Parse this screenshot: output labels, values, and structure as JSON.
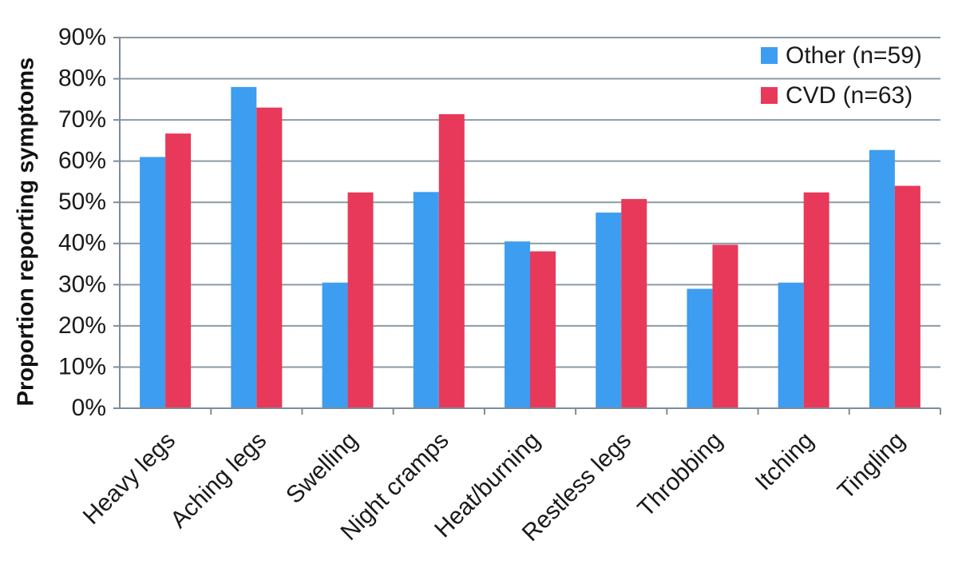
{
  "chart_data": {
    "type": "bar",
    "title": "",
    "xlabel": "",
    "ylabel": "Proportion reporting symptoms",
    "ylim": [
      0,
      90
    ],
    "yticks": [
      "0%",
      "10%",
      "20%",
      "30%",
      "40%",
      "50%",
      "60%",
      "70%",
      "80%",
      "90%"
    ],
    "grid": true,
    "legend_position": "top-right",
    "categories": [
      "Heavy legs",
      "Aching legs",
      "Swelling",
      "Night cramps",
      "Heat/burning",
      "Restless legs",
      "Throbbing",
      "Itching",
      "Tingling"
    ],
    "series": [
      {
        "name": "Other (n=59)",
        "color": "#3d9df0",
        "values": [
          61,
          78,
          30.5,
          52.5,
          40.5,
          47.5,
          29,
          30.5,
          62.7
        ]
      },
      {
        "name": "CVD (n=63)",
        "color": "#e8395a",
        "values": [
          66.7,
          73,
          52.4,
          71.4,
          38.1,
          50.8,
          39.7,
          52.4,
          54
        ]
      }
    ]
  }
}
